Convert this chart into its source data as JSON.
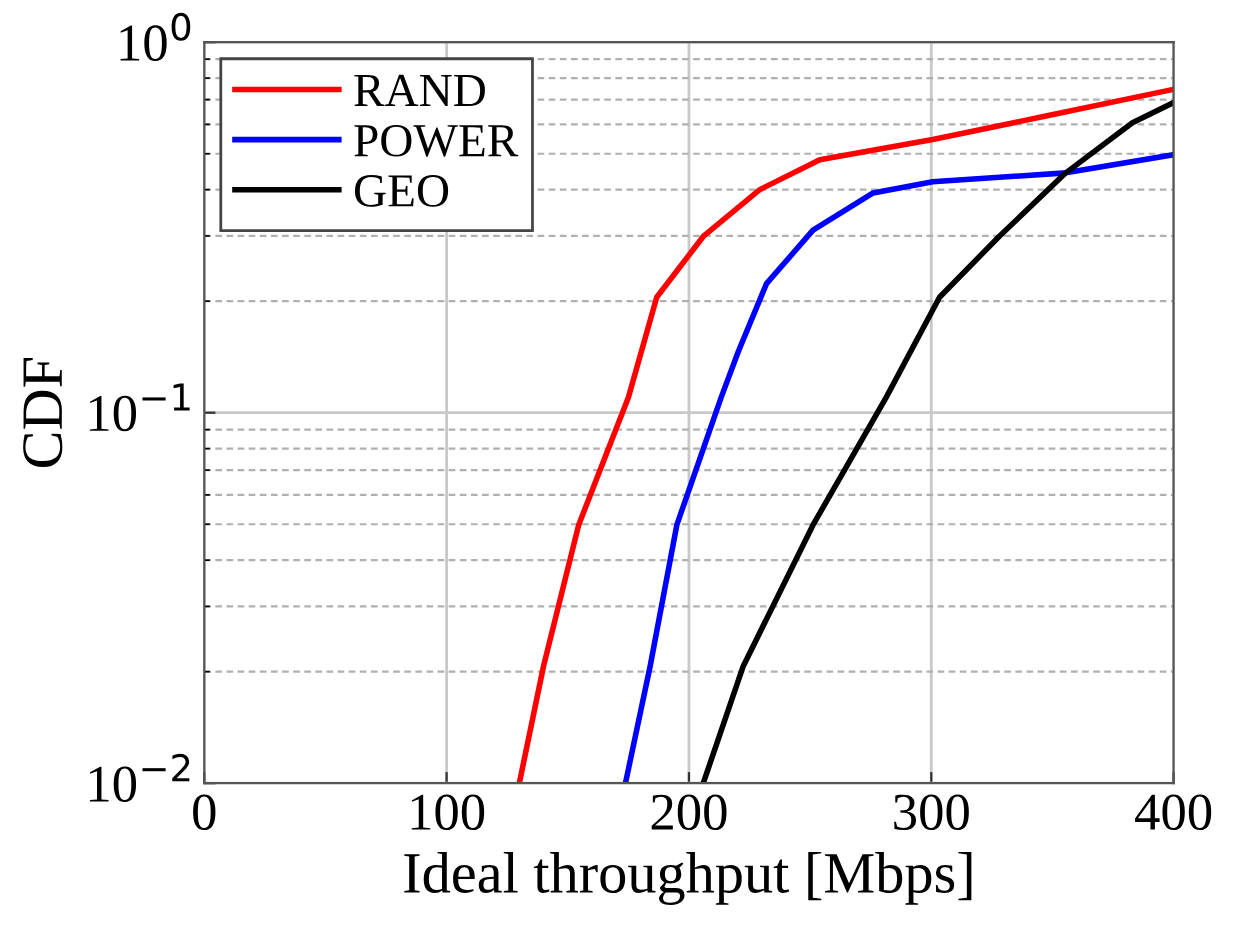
{
  "chart_data": {
    "type": "line",
    "xlabel": "Ideal throughput [Mbps]",
    "ylabel": "CDF",
    "log": "y",
    "xlim": [
      0,
      400
    ],
    "xticks": [
      0,
      100,
      200,
      300,
      400
    ],
    "ylim": [
      0.01,
      1
    ],
    "yticks": [
      {
        "value": 0.01,
        "label": "10$^{−2}$"
      },
      {
        "value": 0.1,
        "label": "10$^{−1}$"
      },
      {
        "value": 1,
        "label": "10$^{0}$"
      }
    ],
    "grid": true,
    "legend": "top left",
    "marker": "none",
    "line_style": "solid",
    "series": [
      {
        "name": "RAND",
        "color": "#ff0000",
        "x": [
          130,
          140,
          154.5,
          175,
          186.7,
          205.9,
          229.2,
          254,
          300.6,
          347.3,
          400
        ],
        "values": [
          0.01,
          0.0207,
          0.0498,
          0.11,
          0.205,
          0.299,
          0.4,
          0.482,
          0.546,
          0.632,
          0.746
        ]
      },
      {
        "name": "POWER",
        "color": "#0000ff",
        "x": [
          173.8,
          184,
          195,
          213.3,
          220.5,
          232,
          251.2,
          276,
          300.6,
          355.5,
          400
        ],
        "values": [
          0.01,
          0.0207,
          0.0498,
          0.11,
          0.147,
          0.223,
          0.311,
          0.392,
          0.42,
          0.444,
          0.497
        ]
      },
      {
        "name": "GEO",
        "color": "#000000",
        "x": [
          205.9,
          222.4,
          251.2,
          281.4,
          303.4,
          328,
          355.5,
          383,
          400
        ],
        "values": [
          0.01,
          0.0207,
          0.0498,
          0.11,
          0.205,
          0.299,
          0.444,
          0.606,
          0.687
        ]
      }
    ]
  }
}
